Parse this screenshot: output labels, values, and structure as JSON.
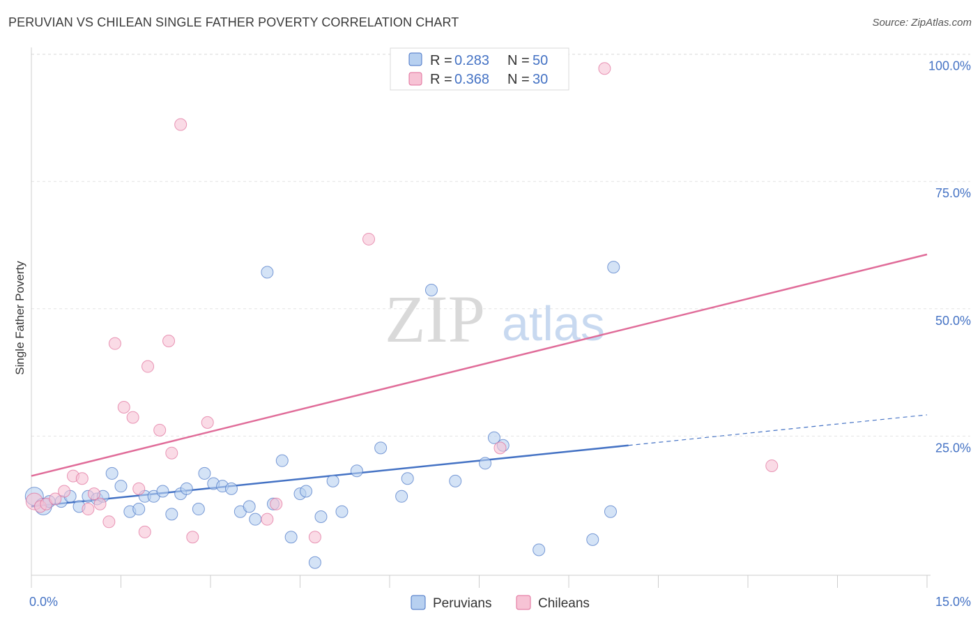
{
  "chart_data": {
    "type": "scatter",
    "title": "PERUVIAN VS CHILEAN SINGLE FATHER POVERTY CORRELATION CHART",
    "source": "Source: ZipAtlas.com",
    "xlabel": "",
    "ylabel": "Single Father Poverty",
    "xlim": [
      0,
      15
    ],
    "ylim": [
      0,
      102
    ],
    "x_tick_labels": [
      "0.0%",
      "15.0%"
    ],
    "y_ticks": [
      25,
      50,
      75,
      100
    ],
    "y_tick_labels": [
      "25.0%",
      "50.0%",
      "75.0%",
      "100.0%"
    ],
    "grid": true,
    "watermark": {
      "zip": "ZIP",
      "atlas": "atlas"
    },
    "legend": {
      "r_label": "R =",
      "n_label": "N =",
      "entries": [
        {
          "name": "Peruvians",
          "r": "0.283",
          "n": "50"
        },
        {
          "name": "Chileans",
          "r": "0.368",
          "n": "30"
        }
      ]
    },
    "series": [
      {
        "name": "Peruvians",
        "color": "#4472c4",
        "fill": "#b7d0f0",
        "trend": {
          "x0": 0,
          "y0": 13.5,
          "x1": 10.0,
          "y1": 25.5,
          "dash_x1": 15.0,
          "dash_y1": 31.5
        },
        "points": [
          {
            "x": 0.05,
            "y": 15.5,
            "r": 13
          },
          {
            "x": 0.2,
            "y": 13.5,
            "r": 12
          },
          {
            "x": 0.3,
            "y": 14.5
          },
          {
            "x": 0.5,
            "y": 14.5
          },
          {
            "x": 0.65,
            "y": 15.5
          },
          {
            "x": 0.8,
            "y": 13.5
          },
          {
            "x": 0.95,
            "y": 15.5
          },
          {
            "x": 1.1,
            "y": 15.0
          },
          {
            "x": 1.2,
            "y": 15.5
          },
          {
            "x": 1.35,
            "y": 20.0
          },
          {
            "x": 1.5,
            "y": 17.5
          },
          {
            "x": 1.65,
            "y": 12.5
          },
          {
            "x": 1.8,
            "y": 13.0
          },
          {
            "x": 1.9,
            "y": 15.5
          },
          {
            "x": 2.05,
            "y": 15.5
          },
          {
            "x": 2.2,
            "y": 16.5
          },
          {
            "x": 2.35,
            "y": 12.0
          },
          {
            "x": 2.5,
            "y": 16.0
          },
          {
            "x": 2.6,
            "y": 17.0
          },
          {
            "x": 2.8,
            "y": 13.0
          },
          {
            "x": 2.9,
            "y": 20.0
          },
          {
            "x": 3.05,
            "y": 18.0
          },
          {
            "x": 3.2,
            "y": 17.5
          },
          {
            "x": 3.35,
            "y": 17.0
          },
          {
            "x": 3.5,
            "y": 12.5
          },
          {
            "x": 3.65,
            "y": 13.5
          },
          {
            "x": 3.75,
            "y": 11.0
          },
          {
            "x": 3.95,
            "y": 59.5
          },
          {
            "x": 4.05,
            "y": 14.0
          },
          {
            "x": 4.2,
            "y": 22.5
          },
          {
            "x": 4.35,
            "y": 7.5
          },
          {
            "x": 4.5,
            "y": 16.0
          },
          {
            "x": 4.6,
            "y": 16.5
          },
          {
            "x": 4.75,
            "y": 2.5
          },
          {
            "x": 4.85,
            "y": 11.5
          },
          {
            "x": 5.05,
            "y": 18.5
          },
          {
            "x": 5.2,
            "y": 12.5
          },
          {
            "x": 5.45,
            "y": 20.5
          },
          {
            "x": 5.85,
            "y": 25.0
          },
          {
            "x": 6.2,
            "y": 15.5
          },
          {
            "x": 6.3,
            "y": 19.0
          },
          {
            "x": 6.7,
            "y": 56.0
          },
          {
            "x": 7.1,
            "y": 18.5
          },
          {
            "x": 7.6,
            "y": 22.0
          },
          {
            "x": 7.75,
            "y": 27.0
          },
          {
            "x": 7.9,
            "y": 25.5
          },
          {
            "x": 8.5,
            "y": 5.0
          },
          {
            "x": 9.4,
            "y": 7.0
          },
          {
            "x": 9.7,
            "y": 12.5
          },
          {
            "x": 9.75,
            "y": 60.5
          }
        ]
      },
      {
        "name": "Chileans",
        "color": "#e06c99",
        "fill": "#f7c3d5",
        "trend": {
          "x0": 0,
          "y0": 19.5,
          "x1": 15.0,
          "y1": 63.0
        },
        "points": [
          {
            "x": 0.05,
            "y": 14.5,
            "r": 12
          },
          {
            "x": 0.15,
            "y": 13.5
          },
          {
            "x": 0.25,
            "y": 14.0
          },
          {
            "x": 0.4,
            "y": 15.0
          },
          {
            "x": 0.55,
            "y": 16.5
          },
          {
            "x": 0.7,
            "y": 19.5
          },
          {
            "x": 0.85,
            "y": 19.0
          },
          {
            "x": 0.95,
            "y": 13.0
          },
          {
            "x": 1.05,
            "y": 16.0
          },
          {
            "x": 1.15,
            "y": 14.0
          },
          {
            "x": 1.3,
            "y": 10.5
          },
          {
            "x": 1.4,
            "y": 45.5
          },
          {
            "x": 1.55,
            "y": 33.0
          },
          {
            "x": 1.7,
            "y": 31.0
          },
          {
            "x": 1.8,
            "y": 17.0
          },
          {
            "x": 1.9,
            "y": 8.5
          },
          {
            "x": 1.95,
            "y": 41.0
          },
          {
            "x": 2.15,
            "y": 28.5
          },
          {
            "x": 2.3,
            "y": 46.0
          },
          {
            "x": 2.35,
            "y": 24.0
          },
          {
            "x": 2.5,
            "y": 88.5
          },
          {
            "x": 2.7,
            "y": 7.5
          },
          {
            "x": 2.95,
            "y": 30.0
          },
          {
            "x": 3.95,
            "y": 11.0
          },
          {
            "x": 4.1,
            "y": 14.0
          },
          {
            "x": 4.75,
            "y": 7.5
          },
          {
            "x": 5.65,
            "y": 66.0
          },
          {
            "x": 7.85,
            "y": 25.0
          },
          {
            "x": 9.6,
            "y": 99.5
          },
          {
            "x": 12.4,
            "y": 21.5
          }
        ]
      }
    ]
  }
}
